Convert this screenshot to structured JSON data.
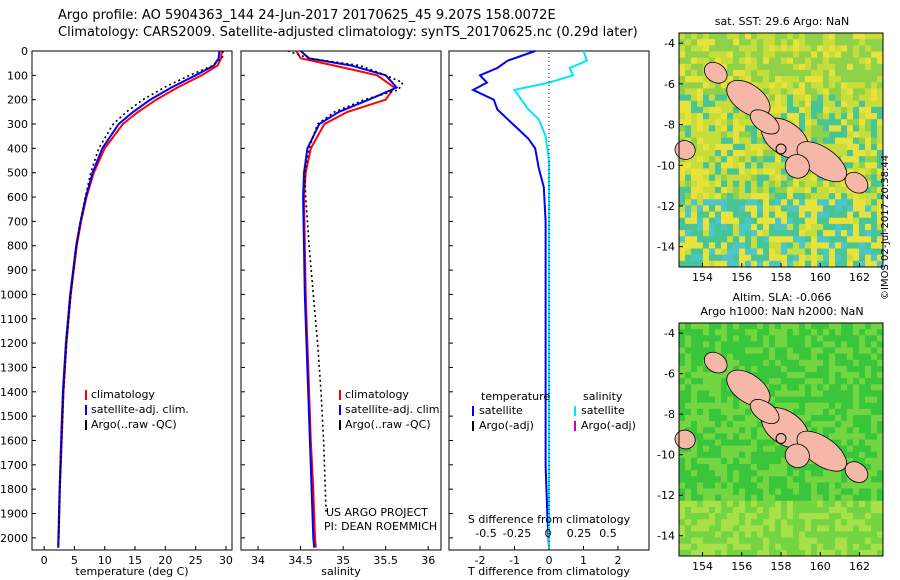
{
  "header": {
    "line1": "Argo profile: AO 5904363_144 24-Jun-2017 20170625_45 9.207S 158.0072E",
    "line2": "Climatology: CARS2009. Satellite-adjusted climatology: synTS_20170625.nc (0.29d later)"
  },
  "depth_ticks": [
    "0",
    "100",
    "200",
    "300",
    "400",
    "500",
    "600",
    "700",
    "800",
    "900",
    "1000",
    "1100",
    "1200",
    "1300",
    "1400",
    "1500",
    "1600",
    "1700",
    "1800",
    "1900",
    "2000"
  ],
  "colors": {
    "climatology": "#ff0000",
    "satellite": "#0000ff",
    "argo": "#000000",
    "sat_salinity": "#00e5ff",
    "argo_salinity": "#cc00cc"
  },
  "chart_data": [
    {
      "type": "line",
      "xlabel": "temperature (deg C)",
      "xticks": [
        "0",
        "5",
        "10",
        "15",
        "20",
        "25",
        "30"
      ],
      "xlim": [
        -2,
        31
      ],
      "ylim": [
        2050,
        0
      ],
      "legend": [
        "climatology",
        "satellite-adj. clim.",
        "Argo(..raw -QC)"
      ],
      "series": [
        {
          "name": "climatology",
          "depth": [
            0,
            30,
            60,
            100,
            150,
            200,
            250,
            300,
            400,
            500,
            600,
            700,
            800,
            1000,
            1200,
            1400,
            1600,
            1800,
            2000,
            2040
          ],
          "values": [
            29.3,
            29.2,
            28.6,
            26,
            22,
            18.5,
            15.5,
            13,
            10,
            8.2,
            7,
            6.1,
            5.4,
            4.4,
            3.7,
            3.2,
            2.9,
            2.6,
            2.4,
            2.35
          ]
        },
        {
          "name": "satellite-adj. clim.",
          "depth": [
            0,
            30,
            60,
            100,
            150,
            200,
            250,
            300,
            400,
            500,
            600,
            700,
            800,
            1000,
            1200,
            1400,
            1600,
            1800,
            2000,
            2040
          ],
          "values": [
            28.9,
            28.8,
            28,
            25,
            21,
            17.5,
            14.7,
            12.3,
            9.6,
            8,
            6.9,
            6,
            5.3,
            4.3,
            3.6,
            3.1,
            2.8,
            2.55,
            2.35,
            2.3
          ]
        },
        {
          "name": "Argo(..raw -QC)",
          "depth": [
            0,
            30,
            60,
            100,
            150,
            200,
            250,
            300,
            400,
            500,
            600,
            700,
            800,
            1000,
            1200,
            1400,
            1600,
            1800,
            2000
          ],
          "values": [
            29.5,
            29.4,
            27.8,
            24,
            19.8,
            16.3,
            13.6,
            11.4,
            9,
            7.7,
            6.8,
            6,
            5.3,
            4.4,
            3.7,
            3.2,
            2.9,
            2.6,
            2.4
          ]
        }
      ]
    },
    {
      "type": "line",
      "xlabel": "salinity",
      "xticks": [
        "34",
        "34.5",
        "35",
        "35.5",
        "36"
      ],
      "xlim": [
        33.8,
        36.15
      ],
      "ylim": [
        2050,
        0
      ],
      "legend": [
        "climatology",
        "satellite-adj. clim.",
        "Argo(..raw -QC)"
      ],
      "annotations": [
        "US ARGO PROJECT",
        "PI: DEAN ROEMMICH"
      ],
      "series": [
        {
          "name": "climatology",
          "depth": [
            0,
            30,
            60,
            100,
            150,
            200,
            250,
            300,
            400,
            500,
            600,
            800,
            1000,
            1200,
            1400,
            1600,
            1800,
            2000,
            2040
          ],
          "values": [
            34.45,
            34.5,
            34.9,
            35.4,
            35.6,
            35.5,
            35.05,
            34.78,
            34.62,
            34.56,
            34.54,
            34.55,
            34.56,
            34.58,
            34.6,
            34.62,
            34.65,
            34.67,
            34.68
          ]
        },
        {
          "name": "satellite-adj. clim.",
          "depth": [
            0,
            30,
            60,
            100,
            150,
            200,
            250,
            300,
            400,
            500,
            600,
            800,
            1000,
            1200,
            1400,
            1600,
            1800,
            2000,
            2040
          ],
          "values": [
            34.5,
            34.6,
            35.1,
            35.5,
            35.63,
            35.3,
            34.95,
            34.72,
            34.58,
            34.54,
            34.53,
            34.54,
            34.55,
            34.57,
            34.59,
            34.61,
            34.63,
            34.65,
            34.66
          ]
        },
        {
          "name": "Argo(..raw -QC)",
          "depth": [
            0,
            30,
            60,
            100,
            130,
            160,
            200,
            250,
            300,
            400,
            500,
            600,
            800,
            1000,
            1200,
            1400,
            1600,
            1800,
            1900
          ],
          "values": [
            34.35,
            34.6,
            35.2,
            35.5,
            35.7,
            35.65,
            35.25,
            34.9,
            34.7,
            34.6,
            34.55,
            34.56,
            34.6,
            34.65,
            34.7,
            34.74,
            34.77,
            34.79,
            34.8
          ]
        }
      ]
    },
    {
      "type": "line",
      "xlabel": "T difference from climatology",
      "top_label": "S difference from climatology",
      "xticks": [
        "-2",
        "-1",
        "0",
        "1",
        "2"
      ],
      "top_ticks": [
        "-0.5",
        "-0.25",
        "0",
        "0.25",
        "0.5"
      ],
      "xlim": [
        -2.9,
        2.9
      ],
      "ylim": [
        2050,
        0
      ],
      "legend_headers": [
        "temperature",
        "salinity"
      ],
      "legend": [
        "satellite",
        "Argo(-adj)",
        "satellite",
        "Argo(-adj)"
      ],
      "series": [
        {
          "name": "satellite",
          "depth": [
            0,
            40,
            70,
            100,
            130,
            160,
            200,
            240,
            280,
            320,
            360,
            400,
            480,
            560,
            700,
            900,
            1100,
            1300,
            1500,
            1700,
            1900,
            2040
          ],
          "values": [
            -0.4,
            -1.2,
            -1.5,
            -2,
            -1.8,
            -2.2,
            -1.6,
            -1.5,
            -1.2,
            -0.9,
            -0.6,
            -0.4,
            -0.3,
            -0.15,
            -0.1,
            -0.1,
            -0.1,
            -0.1,
            -0.1,
            -0.1,
            -0.05,
            0
          ]
        },
        {
          "name": "salinity satellite",
          "depth": [
            0,
            40,
            70,
            100,
            130,
            160,
            200,
            240,
            280,
            350,
            450,
            600,
            800,
            1000,
            1400,
            1800,
            2040
          ],
          "values": [
            1,
            1.1,
            0.6,
            0.7,
            0,
            -1,
            -0.8,
            -0.6,
            -0.3,
            -0.1,
            0,
            0,
            0,
            0,
            0,
            0,
            0
          ]
        }
      ]
    }
  ],
  "maps": [
    {
      "title": "sat. SST: 29.6 Argo: NaN",
      "xticks": [
        "154",
        "156",
        "158",
        "160",
        "162"
      ],
      "yticks": [
        "-4",
        "-6",
        "-8",
        "-10",
        "-12",
        "-14"
      ]
    },
    {
      "title_line1": "Altim. SLA: -0.066",
      "title_line2": "Argo h1000: NaN h2000: NaN",
      "xticks": [
        "154",
        "156",
        "158",
        "160",
        "162"
      ],
      "yticks": [
        "-4",
        "-6",
        "-8",
        "-10",
        "-12",
        "-14"
      ]
    }
  ],
  "footer_vertical": "©IMOS 02-Jul-2017 20:38:44"
}
